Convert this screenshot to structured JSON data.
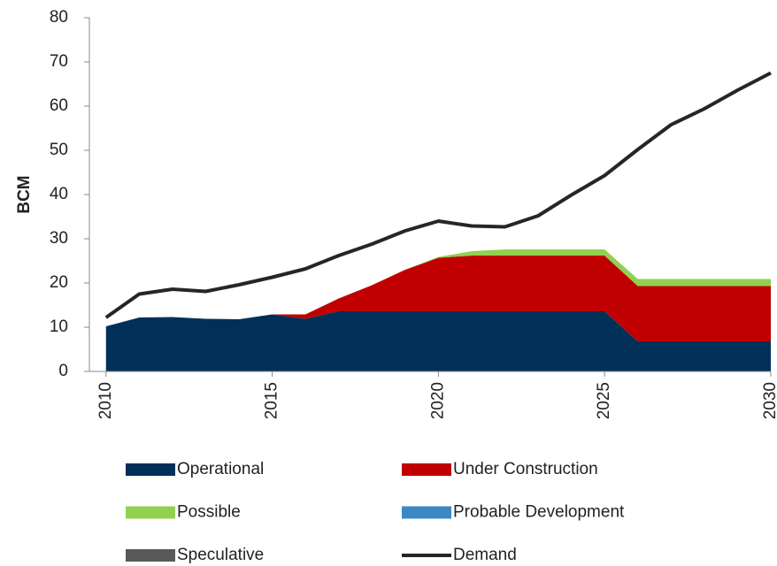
{
  "chart_data": {
    "type": "stacked_area_line",
    "ylabel": "BCM",
    "x": [
      2010,
      2011,
      2012,
      2013,
      2014,
      2015,
      2016,
      2017,
      2018,
      2019,
      2020,
      2021,
      2022,
      2023,
      2024,
      2025,
      2026,
      2027,
      2028,
      2029,
      2030
    ],
    "xlim": [
      2009.5,
      2030
    ],
    "xticks": [
      2010,
      2015,
      2020,
      2025,
      2030
    ],
    "ylim": [
      0,
      80
    ],
    "yticks": [
      0,
      10,
      20,
      30,
      40,
      50,
      60,
      70,
      80
    ],
    "series": [
      {
        "name": "Operational",
        "color": "#003057",
        "kind": "area",
        "values": [
          10.2,
          12.2,
          12.3,
          11.9,
          11.8,
          12.9,
          11.9,
          13.6,
          13.6,
          13.6,
          13.6,
          13.6,
          13.6,
          13.6,
          13.6,
          13.6,
          6.8,
          6.8,
          6.8,
          6.8,
          6.8
        ]
      },
      {
        "name": "Under Construction",
        "color": "#c00000",
        "kind": "area",
        "values": [
          0,
          0,
          0,
          0,
          0,
          0,
          1,
          2.9,
          5.9,
          9.4,
          12.1,
          12.6,
          12.6,
          12.6,
          12.6,
          12.6,
          12.5,
          12.5,
          12.5,
          12.5,
          12.5
        ]
      },
      {
        "name": "Possible",
        "color": "#92d050",
        "kind": "area",
        "values": [
          0,
          0,
          0,
          0,
          0,
          0,
          0,
          0,
          0,
          0,
          0.2,
          1,
          1.4,
          1.4,
          1.4,
          1.4,
          1.6,
          1.6,
          1.6,
          1.6,
          1.6
        ]
      },
      {
        "name": "Probable Development",
        "color": "#3e87c5",
        "kind": "area",
        "values": [
          0,
          0,
          0,
          0,
          0,
          0,
          0,
          0,
          0,
          0,
          0,
          0,
          0,
          0,
          0,
          0,
          0,
          0,
          0,
          0,
          0
        ]
      },
      {
        "name": "Speculative",
        "color": "#595959",
        "kind": "area",
        "values": [
          0,
          0,
          0,
          0,
          0,
          0,
          0,
          0,
          0,
          0,
          0,
          0,
          0,
          0,
          0,
          0,
          0,
          0,
          0,
          0,
          0
        ]
      },
      {
        "name": "Demand",
        "color": "#262626",
        "kind": "line",
        "values": [
          12.2,
          17.5,
          18.6,
          18.1,
          19.6,
          21.3,
          23.2,
          26.2,
          28.8,
          31.8,
          34,
          32.9,
          32.7,
          35.2,
          39.9,
          44.3,
          50.2,
          55.8,
          59.4,
          63.6,
          67.5
        ]
      }
    ]
  }
}
